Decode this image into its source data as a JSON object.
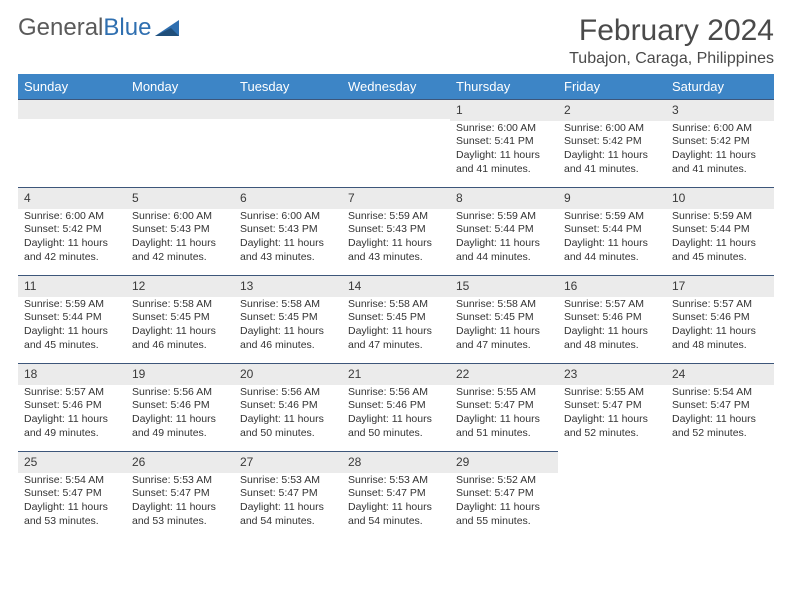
{
  "logo": {
    "text1": "General",
    "text2": "Blue"
  },
  "title": "February 2024",
  "location": "Tubajon, Caraga, Philippines",
  "colors": {
    "header_bg": "#3d85c6",
    "header_text": "#ffffff",
    "daynum_bg": "#ebebeb",
    "daynum_border": "#3d567a",
    "text": "#333333",
    "logo_gray": "#5a5a5a",
    "logo_blue": "#2f6fb0"
  },
  "day_headers": [
    "Sunday",
    "Monday",
    "Tuesday",
    "Wednesday",
    "Thursday",
    "Friday",
    "Saturday"
  ],
  "weeks": [
    [
      {
        "n": "",
        "sr": "",
        "ss": "",
        "dl": ""
      },
      {
        "n": "",
        "sr": "",
        "ss": "",
        "dl": ""
      },
      {
        "n": "",
        "sr": "",
        "ss": "",
        "dl": ""
      },
      {
        "n": "",
        "sr": "",
        "ss": "",
        "dl": ""
      },
      {
        "n": "1",
        "sr": "Sunrise: 6:00 AM",
        "ss": "Sunset: 5:41 PM",
        "dl": "Daylight: 11 hours and 41 minutes."
      },
      {
        "n": "2",
        "sr": "Sunrise: 6:00 AM",
        "ss": "Sunset: 5:42 PM",
        "dl": "Daylight: 11 hours and 41 minutes."
      },
      {
        "n": "3",
        "sr": "Sunrise: 6:00 AM",
        "ss": "Sunset: 5:42 PM",
        "dl": "Daylight: 11 hours and 41 minutes."
      }
    ],
    [
      {
        "n": "4",
        "sr": "Sunrise: 6:00 AM",
        "ss": "Sunset: 5:42 PM",
        "dl": "Daylight: 11 hours and 42 minutes."
      },
      {
        "n": "5",
        "sr": "Sunrise: 6:00 AM",
        "ss": "Sunset: 5:43 PM",
        "dl": "Daylight: 11 hours and 42 minutes."
      },
      {
        "n": "6",
        "sr": "Sunrise: 6:00 AM",
        "ss": "Sunset: 5:43 PM",
        "dl": "Daylight: 11 hours and 43 minutes."
      },
      {
        "n": "7",
        "sr": "Sunrise: 5:59 AM",
        "ss": "Sunset: 5:43 PM",
        "dl": "Daylight: 11 hours and 43 minutes."
      },
      {
        "n": "8",
        "sr": "Sunrise: 5:59 AM",
        "ss": "Sunset: 5:44 PM",
        "dl": "Daylight: 11 hours and 44 minutes."
      },
      {
        "n": "9",
        "sr": "Sunrise: 5:59 AM",
        "ss": "Sunset: 5:44 PM",
        "dl": "Daylight: 11 hours and 44 minutes."
      },
      {
        "n": "10",
        "sr": "Sunrise: 5:59 AM",
        "ss": "Sunset: 5:44 PM",
        "dl": "Daylight: 11 hours and 45 minutes."
      }
    ],
    [
      {
        "n": "11",
        "sr": "Sunrise: 5:59 AM",
        "ss": "Sunset: 5:44 PM",
        "dl": "Daylight: 11 hours and 45 minutes."
      },
      {
        "n": "12",
        "sr": "Sunrise: 5:58 AM",
        "ss": "Sunset: 5:45 PM",
        "dl": "Daylight: 11 hours and 46 minutes."
      },
      {
        "n": "13",
        "sr": "Sunrise: 5:58 AM",
        "ss": "Sunset: 5:45 PM",
        "dl": "Daylight: 11 hours and 46 minutes."
      },
      {
        "n": "14",
        "sr": "Sunrise: 5:58 AM",
        "ss": "Sunset: 5:45 PM",
        "dl": "Daylight: 11 hours and 47 minutes."
      },
      {
        "n": "15",
        "sr": "Sunrise: 5:58 AM",
        "ss": "Sunset: 5:45 PM",
        "dl": "Daylight: 11 hours and 47 minutes."
      },
      {
        "n": "16",
        "sr": "Sunrise: 5:57 AM",
        "ss": "Sunset: 5:46 PM",
        "dl": "Daylight: 11 hours and 48 minutes."
      },
      {
        "n": "17",
        "sr": "Sunrise: 5:57 AM",
        "ss": "Sunset: 5:46 PM",
        "dl": "Daylight: 11 hours and 48 minutes."
      }
    ],
    [
      {
        "n": "18",
        "sr": "Sunrise: 5:57 AM",
        "ss": "Sunset: 5:46 PM",
        "dl": "Daylight: 11 hours and 49 minutes."
      },
      {
        "n": "19",
        "sr": "Sunrise: 5:56 AM",
        "ss": "Sunset: 5:46 PM",
        "dl": "Daylight: 11 hours and 49 minutes."
      },
      {
        "n": "20",
        "sr": "Sunrise: 5:56 AM",
        "ss": "Sunset: 5:46 PM",
        "dl": "Daylight: 11 hours and 50 minutes."
      },
      {
        "n": "21",
        "sr": "Sunrise: 5:56 AM",
        "ss": "Sunset: 5:46 PM",
        "dl": "Daylight: 11 hours and 50 minutes."
      },
      {
        "n": "22",
        "sr": "Sunrise: 5:55 AM",
        "ss": "Sunset: 5:47 PM",
        "dl": "Daylight: 11 hours and 51 minutes."
      },
      {
        "n": "23",
        "sr": "Sunrise: 5:55 AM",
        "ss": "Sunset: 5:47 PM",
        "dl": "Daylight: 11 hours and 52 minutes."
      },
      {
        "n": "24",
        "sr": "Sunrise: 5:54 AM",
        "ss": "Sunset: 5:47 PM",
        "dl": "Daylight: 11 hours and 52 minutes."
      }
    ],
    [
      {
        "n": "25",
        "sr": "Sunrise: 5:54 AM",
        "ss": "Sunset: 5:47 PM",
        "dl": "Daylight: 11 hours and 53 minutes."
      },
      {
        "n": "26",
        "sr": "Sunrise: 5:53 AM",
        "ss": "Sunset: 5:47 PM",
        "dl": "Daylight: 11 hours and 53 minutes."
      },
      {
        "n": "27",
        "sr": "Sunrise: 5:53 AM",
        "ss": "Sunset: 5:47 PM",
        "dl": "Daylight: 11 hours and 54 minutes."
      },
      {
        "n": "28",
        "sr": "Sunrise: 5:53 AM",
        "ss": "Sunset: 5:47 PM",
        "dl": "Daylight: 11 hours and 54 minutes."
      },
      {
        "n": "29",
        "sr": "Sunrise: 5:52 AM",
        "ss": "Sunset: 5:47 PM",
        "dl": "Daylight: 11 hours and 55 minutes."
      },
      {
        "n": "",
        "sr": "",
        "ss": "",
        "dl": ""
      },
      {
        "n": "",
        "sr": "",
        "ss": "",
        "dl": ""
      }
    ]
  ]
}
